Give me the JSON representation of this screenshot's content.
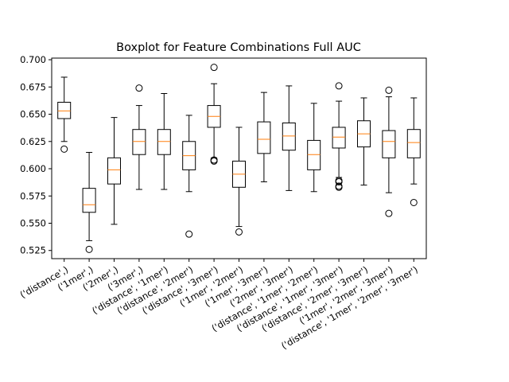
{
  "chart_data": {
    "type": "box",
    "title": "Boxplot for Feature Combinations Full AUC",
    "xlabel": "",
    "ylabel": "",
    "ylim": [
      0.5175,
      0.7015
    ],
    "yticks": [
      0.525,
      0.55,
      0.575,
      0.6,
      0.625,
      0.65,
      0.675,
      0.7
    ],
    "ytick_labels": [
      "0.525",
      "0.550",
      "0.575",
      "0.600",
      "0.625",
      "0.650",
      "0.675",
      "0.700"
    ],
    "grid": false,
    "categories": [
      "('distance',)",
      "('1mer',)",
      "('2mer',)",
      "('3mer',)",
      "('distance', '1mer')",
      "('distance', '2mer')",
      "('distance', '3mer')",
      "('1mer', '2mer')",
      "('1mer', '3mer')",
      "('2mer', '3mer')",
      "('distance', '1mer', '2mer')",
      "('distance', '1mer', '3mer')",
      "('distance', '2mer', '3mer')",
      "('1mer', '2mer', '3mer')",
      "('distance', '1mer', '2mer', '3mer')"
    ],
    "boxes": [
      {
        "whisker_low": 0.625,
        "q1": 0.646,
        "median": 0.653,
        "q3": 0.661,
        "whisker_high": 0.684,
        "fliers": [
          0.618
        ]
      },
      {
        "whisker_low": 0.534,
        "q1": 0.56,
        "median": 0.567,
        "q3": 0.582,
        "whisker_high": 0.615,
        "fliers": [
          0.526
        ]
      },
      {
        "whisker_low": 0.549,
        "q1": 0.586,
        "median": 0.599,
        "q3": 0.61,
        "whisker_high": 0.647,
        "fliers": []
      },
      {
        "whisker_low": 0.581,
        "q1": 0.613,
        "median": 0.625,
        "q3": 0.636,
        "whisker_high": 0.658,
        "fliers": [
          0.674
        ]
      },
      {
        "whisker_low": 0.581,
        "q1": 0.613,
        "median": 0.625,
        "q3": 0.636,
        "whisker_high": 0.669,
        "fliers": []
      },
      {
        "whisker_low": 0.579,
        "q1": 0.599,
        "median": 0.612,
        "q3": 0.625,
        "whisker_high": 0.649,
        "fliers": [
          0.54
        ]
      },
      {
        "whisker_low": 0.61,
        "q1": 0.638,
        "median": 0.648,
        "q3": 0.658,
        "whisker_high": 0.678,
        "fliers": [
          0.693,
          0.607,
          0.608
        ]
      },
      {
        "whisker_low": 0.547,
        "q1": 0.583,
        "median": 0.595,
        "q3": 0.607,
        "whisker_high": 0.638,
        "fliers": [
          0.542
        ]
      },
      {
        "whisker_low": 0.588,
        "q1": 0.614,
        "median": 0.627,
        "q3": 0.643,
        "whisker_high": 0.67,
        "fliers": []
      },
      {
        "whisker_low": 0.58,
        "q1": 0.617,
        "median": 0.63,
        "q3": 0.642,
        "whisker_high": 0.676,
        "fliers": []
      },
      {
        "whisker_low": 0.579,
        "q1": 0.599,
        "median": 0.613,
        "q3": 0.626,
        "whisker_high": 0.66,
        "fliers": []
      },
      {
        "whisker_low": 0.592,
        "q1": 0.619,
        "median": 0.629,
        "q3": 0.638,
        "whisker_high": 0.662,
        "fliers": [
          0.676,
          0.588,
          0.589,
          0.583,
          0.584
        ]
      },
      {
        "whisker_low": 0.585,
        "q1": 0.62,
        "median": 0.632,
        "q3": 0.644,
        "whisker_high": 0.665,
        "fliers": []
      },
      {
        "whisker_low": 0.578,
        "q1": 0.61,
        "median": 0.625,
        "q3": 0.635,
        "whisker_high": 0.666,
        "fliers": [
          0.672,
          0.559
        ]
      },
      {
        "whisker_low": 0.586,
        "q1": 0.61,
        "median": 0.624,
        "q3": 0.636,
        "whisker_high": 0.665,
        "fliers": [
          0.569
        ]
      }
    ],
    "colors": {
      "box": "#000000",
      "median": "#ff7f0e",
      "flier": "#000000"
    }
  }
}
